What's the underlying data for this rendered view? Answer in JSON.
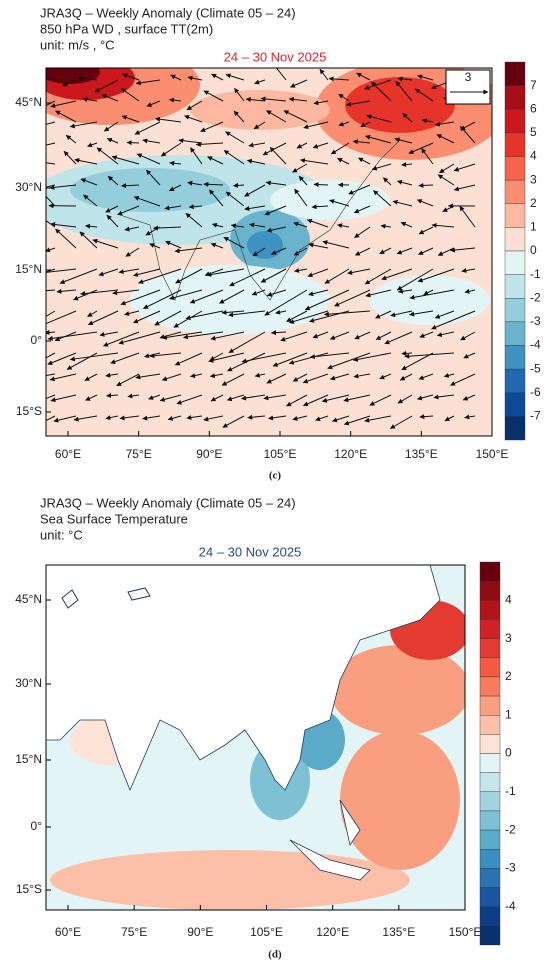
{
  "panels": [
    {
      "title_lines": [
        "JRA3Q – Weekly Anomaly (Climate 05 – 24)",
        "850 hPa WD , surface TT(2m)",
        "unit: m/s , °C"
      ],
      "date": "24 – 30 Nov 2025",
      "date_color": "#e8202a",
      "vector_reference": "3",
      "lon_labels": [
        "60°E",
        "75°E",
        "90°E",
        "105°E",
        "120°E",
        "135°E",
        "150°E"
      ],
      "lat_labels": [
        "45°N",
        "30°N",
        "15°N",
        "0°",
        "15°S"
      ],
      "colorbar": {
        "labels": [
          7,
          6,
          5,
          4,
          3,
          2,
          1,
          0,
          -1,
          -2,
          -3,
          -4,
          -5,
          -6,
          -7
        ],
        "colors": [
          "#67000d",
          "#a50f15",
          "#cb181d",
          "#e7342b",
          "#f7634b",
          "#fb8e71",
          "#fcb8a0",
          "#fde0d4",
          "#e2f4f6",
          "#bfe4ea",
          "#95cedb",
          "#69b4cc",
          "#3f93c2",
          "#2069ae",
          "#0b4a94",
          "#08306b"
        ]
      },
      "caption": "(c)"
    },
    {
      "title_lines": [
        "JRA3Q – Weekly Anomaly (Climate 05 – 24)",
        "Sea Surface Temperature",
        "unit: °C"
      ],
      "date": "24 – 30 Nov 2025",
      "date_color": "#1f4e79",
      "lon_labels": [
        "60°E",
        "75°E",
        "90°E",
        "105°E",
        "120°E",
        "135°E",
        "150°E"
      ],
      "lat_labels": [
        "45°N",
        "30°N",
        "15°N",
        "0°",
        "15°S"
      ],
      "colorbar": {
        "labels": [
          4,
          3,
          2,
          1,
          0,
          -1,
          -2,
          -3,
          -4
        ],
        "colors": [
          "#67000d",
          "#8f0b14",
          "#b3141a",
          "#cf2226",
          "#e33b31",
          "#f25a42",
          "#f77c5d",
          "#fa9e80",
          "#fcc0a8",
          "#fde2d6",
          "#e2f4f6",
          "#c3e5eb",
          "#a2d4e0",
          "#7ec1d4",
          "#5aabc8",
          "#3b8fbf",
          "#2a72b2",
          "#1a56a0",
          "#0c3d86",
          "#08306b"
        ]
      },
      "caption": "(d)"
    }
  ]
}
